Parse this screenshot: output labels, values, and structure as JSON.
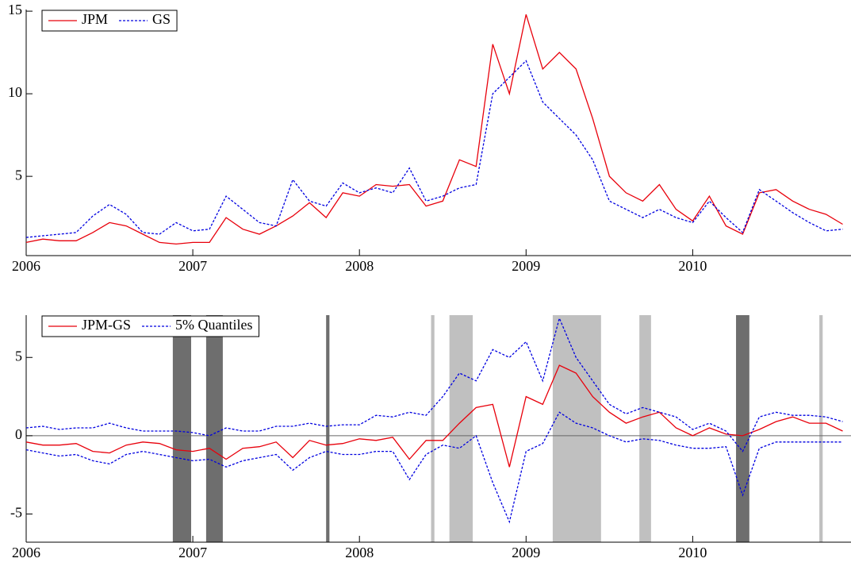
{
  "chart_data": [
    {
      "type": "line",
      "x": [
        2006.0,
        2006.1,
        2006.2,
        2006.3,
        2006.4,
        2006.5,
        2006.6,
        2006.7,
        2006.8,
        2006.9,
        2007.0,
        2007.1,
        2007.2,
        2007.3,
        2007.4,
        2007.5,
        2007.6,
        2007.7,
        2007.8,
        2007.9,
        2008.0,
        2008.1,
        2008.2,
        2008.3,
        2008.4,
        2008.5,
        2008.6,
        2008.7,
        2008.8,
        2008.9,
        2009.0,
        2009.1,
        2009.2,
        2009.3,
        2009.4,
        2009.5,
        2009.6,
        2009.7,
        2009.8,
        2009.9,
        2010.0,
        2010.1,
        2010.2,
        2010.3,
        2010.4,
        2010.5,
        2010.6,
        2010.7,
        2010.8,
        2010.9
      ],
      "series": [
        {
          "name": "JPM",
          "color": "#e8000b",
          "dash": false,
          "values": [
            1.0,
            1.2,
            1.1,
            1.1,
            1.6,
            2.2,
            2.0,
            1.5,
            1.0,
            0.9,
            1.0,
            1.0,
            2.5,
            1.8,
            1.5,
            2.0,
            2.6,
            3.4,
            2.5,
            4.0,
            3.8,
            4.5,
            4.4,
            4.5,
            3.2,
            3.5,
            6.0,
            5.6,
            13.0,
            10.0,
            14.8,
            11.5,
            12.5,
            11.5,
            8.5,
            5.0,
            4.0,
            3.5,
            4.5,
            3.0,
            2.3,
            3.8,
            2.0,
            1.5,
            4.0,
            4.2,
            3.5,
            3.0,
            2.7,
            2.1
          ]
        },
        {
          "name": "GS",
          "color": "#0000e0",
          "dash": true,
          "values": [
            1.3,
            1.4,
            1.5,
            1.6,
            2.6,
            3.3,
            2.7,
            1.6,
            1.5,
            2.2,
            1.7,
            1.8,
            3.8,
            3.0,
            2.2,
            2.0,
            4.8,
            3.5,
            3.2,
            4.6,
            4.0,
            4.3,
            4.0,
            5.5,
            3.5,
            3.8,
            4.3,
            4.5,
            10.0,
            11.0,
            12.0,
            9.5,
            8.5,
            7.5,
            6.0,
            3.5,
            3.0,
            2.5,
            3.0,
            2.5,
            2.2,
            3.5,
            2.5,
            1.6,
            4.2,
            3.5,
            2.8,
            2.2,
            1.7,
            1.8
          ]
        }
      ],
      "xlim": [
        2006.0,
        2010.95
      ],
      "ylim": [
        0.2,
        15.1
      ],
      "xticks": [
        2006,
        2007,
        2008,
        2009,
        2010
      ],
      "yticks": [
        5,
        10,
        15
      ],
      "legend": "upper left"
    },
    {
      "type": "line",
      "x": [
        2006.0,
        2006.1,
        2006.2,
        2006.3,
        2006.4,
        2006.5,
        2006.6,
        2006.7,
        2006.8,
        2006.9,
        2007.0,
        2007.1,
        2007.2,
        2007.3,
        2007.4,
        2007.5,
        2007.6,
        2007.7,
        2007.8,
        2007.9,
        2008.0,
        2008.1,
        2008.2,
        2008.3,
        2008.4,
        2008.5,
        2008.6,
        2008.7,
        2008.8,
        2008.9,
        2009.0,
        2009.1,
        2009.2,
        2009.3,
        2009.4,
        2009.5,
        2009.6,
        2009.7,
        2009.8,
        2009.9,
        2010.0,
        2010.1,
        2010.2,
        2010.3,
        2010.4,
        2010.5,
        2010.6,
        2010.7,
        2010.8,
        2010.9
      ],
      "series": [
        {
          "name": "JPM-GS",
          "color": "#e8000b",
          "dash": false,
          "values": [
            -0.4,
            -0.6,
            -0.6,
            -0.5,
            -1.0,
            -1.1,
            -0.6,
            -0.4,
            -0.5,
            -0.9,
            -1.0,
            -0.8,
            -1.5,
            -0.8,
            -0.7,
            -0.4,
            -1.4,
            -0.3,
            -0.6,
            -0.5,
            -0.2,
            -0.3,
            -0.1,
            -1.5,
            -0.3,
            -0.3,
            0.8,
            1.8,
            2.0,
            -2.0,
            2.5,
            2.0,
            4.5,
            4.0,
            2.5,
            1.5,
            0.8,
            1.2,
            1.5,
            0.5,
            0.0,
            0.5,
            0.1,
            0.0,
            0.4,
            0.9,
            1.2,
            0.8,
            0.8,
            0.3
          ]
        },
        {
          "name": "5% Quantiles",
          "color": "#0000e0",
          "dash": true,
          "values": [
            0.5,
            0.6,
            0.4,
            0.5,
            0.5,
            0.8,
            0.5,
            0.3,
            0.3,
            0.3,
            0.2,
            0.0,
            0.5,
            0.3,
            0.3,
            0.6,
            0.6,
            0.8,
            0.6,
            0.7,
            0.7,
            1.3,
            1.2,
            1.5,
            1.3,
            2.5,
            4.0,
            3.5,
            5.5,
            5.0,
            6.0,
            3.5,
            7.5,
            5.0,
            3.5,
            2.0,
            1.4,
            1.8,
            1.5,
            1.2,
            0.4,
            0.8,
            0.3,
            -1.0,
            1.2,
            1.5,
            1.3,
            1.3,
            1.2,
            0.9
          ],
          "lower": [
            -0.9,
            -1.1,
            -1.3,
            -1.2,
            -1.6,
            -1.8,
            -1.2,
            -1.0,
            -1.2,
            -1.4,
            -1.6,
            -1.5,
            -2.0,
            -1.6,
            -1.4,
            -1.2,
            -2.2,
            -1.4,
            -1.0,
            -1.2,
            -1.2,
            -1.0,
            -1.0,
            -2.8,
            -1.2,
            -0.6,
            -0.8,
            0.0,
            -3.0,
            -5.5,
            -1.0,
            -0.5,
            1.5,
            0.8,
            0.5,
            0.0,
            -0.4,
            -0.2,
            -0.3,
            -0.6,
            -0.8,
            -0.8,
            -0.7,
            -3.8,
            -0.8,
            -0.4,
            -0.4,
            -0.4,
            -0.4,
            -0.4
          ]
        }
      ],
      "shaded_regions": [
        {
          "start": 2006.88,
          "end": 2006.99,
          "color": "#6e6e6e"
        },
        {
          "start": 2007.08,
          "end": 2007.18,
          "color": "#6e6e6e"
        },
        {
          "start": 2007.8,
          "end": 2007.82,
          "color": "#6e6e6e"
        },
        {
          "start": 2008.43,
          "end": 2008.45,
          "color": "#c0c0c0"
        },
        {
          "start": 2008.54,
          "end": 2008.68,
          "color": "#c0c0c0"
        },
        {
          "start": 2009.16,
          "end": 2009.45,
          "color": "#c0c0c0"
        },
        {
          "start": 2009.68,
          "end": 2009.75,
          "color": "#c0c0c0"
        },
        {
          "start": 2010.26,
          "end": 2010.34,
          "color": "#6e6e6e"
        },
        {
          "start": 2010.76,
          "end": 2010.78,
          "color": "#c0c0c0"
        }
      ],
      "hline": 0,
      "xlim": [
        2006.0,
        2010.95
      ],
      "ylim": [
        -6.8,
        7.7
      ],
      "xticks": [
        2006,
        2007,
        2008,
        2009,
        2010
      ],
      "yticks": [
        -5,
        0,
        5
      ],
      "legend": "upper left"
    }
  ]
}
